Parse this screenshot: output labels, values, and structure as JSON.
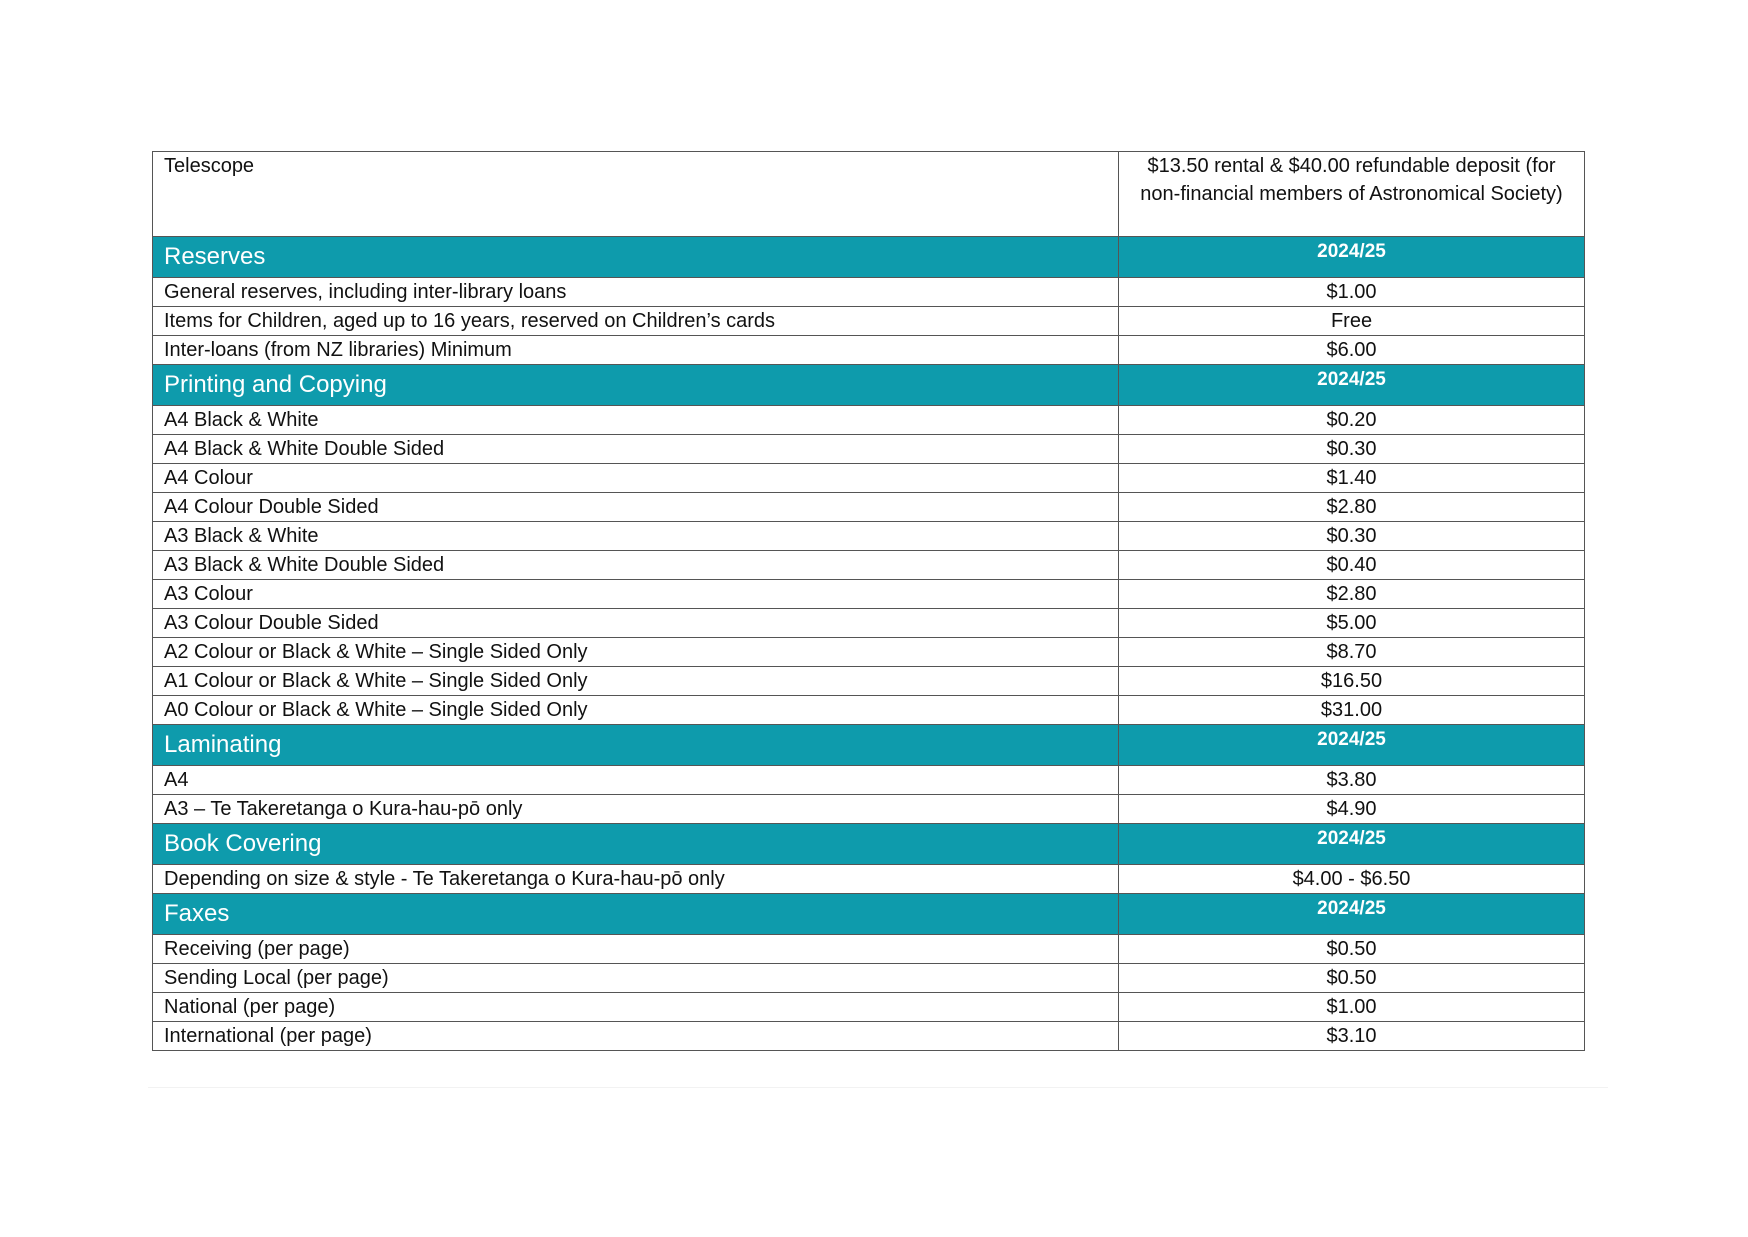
{
  "first_row": {
    "item": "Telescope",
    "fee": "$13.50 rental & $40.00 refundable deposit (for non-financial members of Astronomical Society)"
  },
  "sections": [
    {
      "title": "Reserves",
      "year": "2024/25",
      "rows": [
        {
          "item": "General reserves, including inter-library loans",
          "fee": "$1.00"
        },
        {
          "item": "Items for Children, aged up to 16 years, reserved on Children’s cards",
          "fee": "Free"
        },
        {
          "item": "Inter-loans (from NZ libraries) Minimum",
          "fee": "$6.00"
        }
      ]
    },
    {
      "title": "Printing and Copying",
      "year": "2024/25",
      "rows": [
        {
          "item": "A4 Black & White",
          "fee": "$0.20"
        },
        {
          "item": "A4 Black & White Double Sided",
          "fee": "$0.30"
        },
        {
          "item": "A4 Colour",
          "fee": "$1.40"
        },
        {
          "item": "A4 Colour Double Sided",
          "fee": "$2.80"
        },
        {
          "item": "A3 Black & White",
          "fee": "$0.30"
        },
        {
          "item": "A3 Black & White Double Sided",
          "fee": "$0.40"
        },
        {
          "item": "A3 Colour",
          "fee": "$2.80"
        },
        {
          "item": "A3 Colour Double Sided",
          "fee": "$5.00"
        },
        {
          "item": "A2 Colour or Black & White – Single Sided Only",
          "fee": "$8.70"
        },
        {
          "item": "A1 Colour or Black & White – Single Sided Only",
          "fee": "$16.50"
        },
        {
          "item": "A0 Colour or Black & White – Single Sided Only",
          "fee": "$31.00"
        }
      ]
    },
    {
      "title": "Laminating",
      "year": "2024/25",
      "rows": [
        {
          "item": "A4",
          "fee": "$3.80"
        },
        {
          "item": "A3 – Te Takeretanga o Kura-hau-pō only",
          "fee": "$4.90"
        }
      ]
    },
    {
      "title": "Book Covering",
      "year": "2024/25",
      "rows": [
        {
          "item": "Depending on size & style  - Te Takeretanga o Kura-hau-pō only",
          "fee": "$4.00 - $6.50"
        }
      ]
    },
    {
      "title": "Faxes",
      "year": "2024/25",
      "rows": [
        {
          "item": "Receiving (per page)",
          "fee": "$0.50"
        },
        {
          "item": "Sending Local (per page)",
          "fee": "$0.50"
        },
        {
          "item": "National (per page)",
          "fee": "$1.00"
        },
        {
          "item": "International (per page)",
          "fee": "$3.10"
        }
      ]
    }
  ],
  "colors": {
    "section_header_bg": "#0e9bac",
    "section_header_text": "#ffffff",
    "border": "#555555"
  }
}
